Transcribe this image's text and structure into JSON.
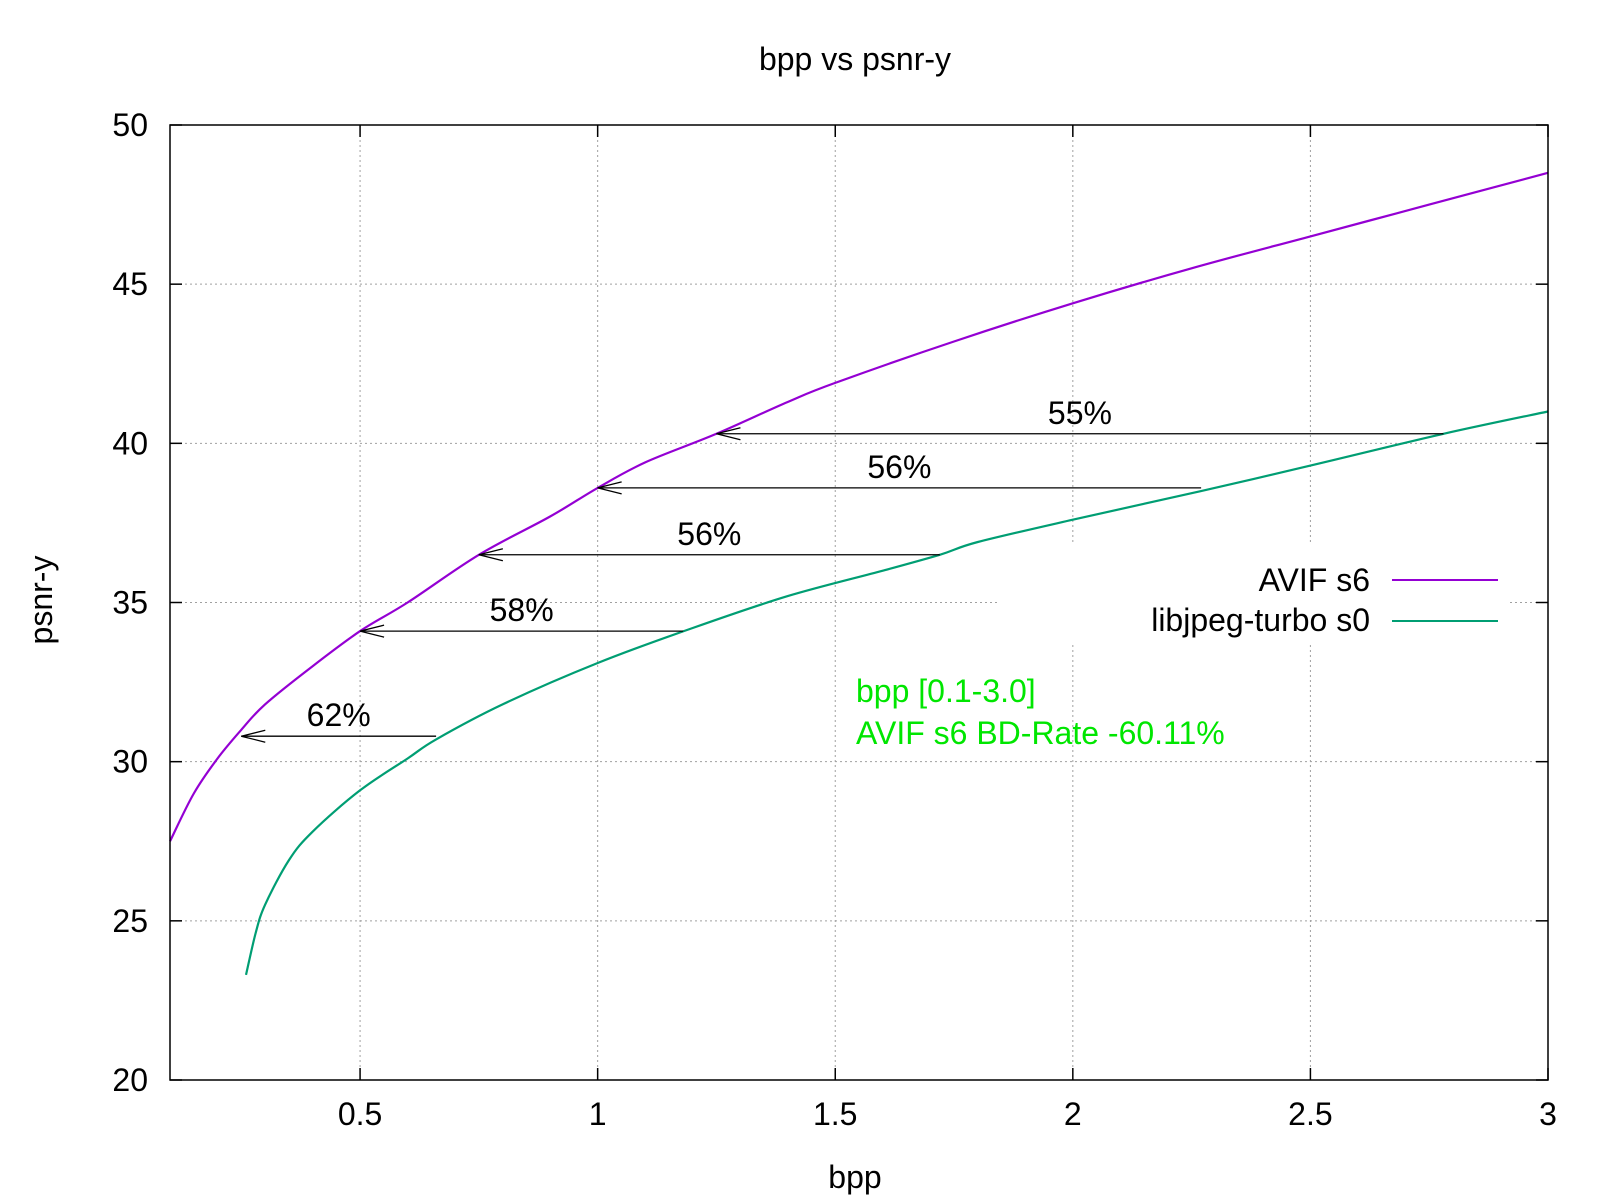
{
  "chart_data": {
    "type": "line",
    "title": "bpp vs psnr-y",
    "xlabel": "bpp",
    "ylabel": "psnr-y",
    "xlim": [
      0.1,
      3.0
    ],
    "ylim": [
      20,
      50
    ],
    "xticks": [
      0.5,
      1,
      1.5,
      2,
      2.5,
      3
    ],
    "xtick_labels": [
      "0.5",
      "1",
      "1.5",
      "2",
      "2.5",
      "3"
    ],
    "yticks": [
      20,
      25,
      30,
      35,
      40,
      45,
      50
    ],
    "ytick_labels": [
      "20",
      "25",
      "30",
      "35",
      "40",
      "45",
      "50"
    ],
    "grid": true,
    "legend_position": "right",
    "series": [
      {
        "name": "AVIF s6",
        "color": "#9400d3",
        "x": [
          0.1,
          0.15,
          0.2,
          0.25,
          0.3,
          0.4,
          0.5,
          0.6,
          0.75,
          0.9,
          1.0,
          1.1,
          1.25,
          1.4,
          1.5,
          1.75,
          2.0,
          2.25,
          2.5,
          2.75,
          3.0
        ],
        "y": [
          27.5,
          29.0,
          30.1,
          31.0,
          31.8,
          33.0,
          34.1,
          35.0,
          36.5,
          37.7,
          38.6,
          39.4,
          40.3,
          41.3,
          41.9,
          43.2,
          44.4,
          45.5,
          46.5,
          47.5,
          48.5
        ]
      },
      {
        "name": "libjpeg-turbo s0",
        "color": "#009e73",
        "x": [
          0.26,
          0.28,
          0.3,
          0.35,
          0.4,
          0.5,
          0.6,
          0.66,
          0.8,
          1.0,
          1.2,
          1.4,
          1.6,
          1.72,
          1.8,
          2.0,
          2.27,
          2.5,
          2.78,
          3.0
        ],
        "y": [
          23.3,
          24.6,
          25.5,
          26.9,
          27.8,
          29.1,
          30.1,
          30.7,
          31.8,
          33.1,
          34.2,
          35.2,
          36.0,
          36.5,
          36.9,
          37.6,
          38.5,
          39.3,
          40.3,
          41.0
        ]
      }
    ],
    "annotations": [
      {
        "text": "55%",
        "from_x": 2.78,
        "to_x": 1.25,
        "y": 40.3
      },
      {
        "text": "56%",
        "from_x": 2.27,
        "to_x": 1.0,
        "y": 38.6
      },
      {
        "text": "56%",
        "from_x": 1.72,
        "to_x": 0.75,
        "y": 36.5
      },
      {
        "text": "58%",
        "from_x": 1.18,
        "to_x": 0.5,
        "y": 34.1
      },
      {
        "text": "62%",
        "from_x": 0.66,
        "to_x": 0.25,
        "y": 30.8
      }
    ],
    "notes": {
      "color": "#00e600",
      "lines": [
        "bpp [0.1-3.0]",
        "AVIF s6 BD-Rate -60.11%"
      ]
    }
  }
}
